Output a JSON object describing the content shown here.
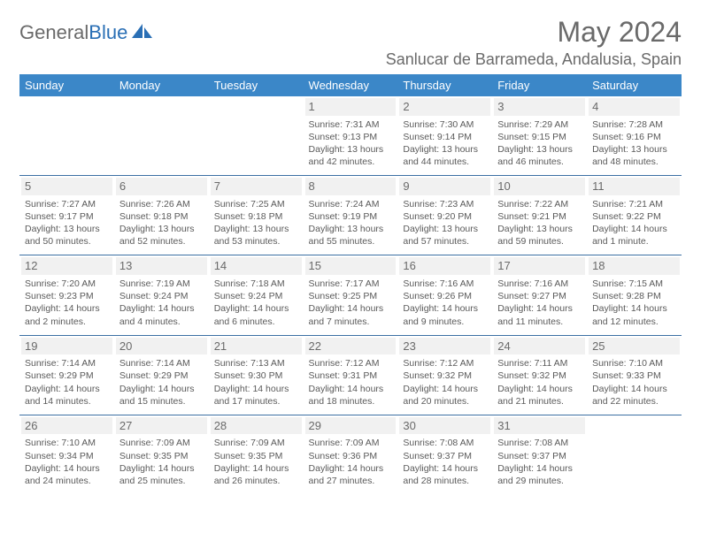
{
  "logo": {
    "word1": "General",
    "word2": "Blue"
  },
  "title": {
    "month_year": "May 2024",
    "location": "Sanlucar de Barrameda, Andalusia, Spain"
  },
  "colors": {
    "header_bg": "#3b87c8",
    "header_text": "#ffffff",
    "cell_border": "#3b6fa3",
    "daynum_bg": "#f1f1f1",
    "body_text": "#5a5a5a",
    "title_text": "#6a6a6a",
    "logo_gray": "#6a6a6a",
    "logo_blue": "#2a6fb5",
    "background": "#ffffff"
  },
  "typography": {
    "month_year_fontsize": 32,
    "location_fontsize": 18,
    "header_fontsize": 13,
    "daynum_fontsize": 13,
    "cell_fontsize": 10.5
  },
  "weekdays": [
    "Sunday",
    "Monday",
    "Tuesday",
    "Wednesday",
    "Thursday",
    "Friday",
    "Saturday"
  ],
  "weeks": [
    [
      null,
      null,
      null,
      {
        "day": "1",
        "sunrise": "Sunrise: 7:31 AM",
        "sunset": "Sunset: 9:13 PM",
        "daylight1": "Daylight: 13 hours",
        "daylight2": "and 42 minutes."
      },
      {
        "day": "2",
        "sunrise": "Sunrise: 7:30 AM",
        "sunset": "Sunset: 9:14 PM",
        "daylight1": "Daylight: 13 hours",
        "daylight2": "and 44 minutes."
      },
      {
        "day": "3",
        "sunrise": "Sunrise: 7:29 AM",
        "sunset": "Sunset: 9:15 PM",
        "daylight1": "Daylight: 13 hours",
        "daylight2": "and 46 minutes."
      },
      {
        "day": "4",
        "sunrise": "Sunrise: 7:28 AM",
        "sunset": "Sunset: 9:16 PM",
        "daylight1": "Daylight: 13 hours",
        "daylight2": "and 48 minutes."
      }
    ],
    [
      {
        "day": "5",
        "sunrise": "Sunrise: 7:27 AM",
        "sunset": "Sunset: 9:17 PM",
        "daylight1": "Daylight: 13 hours",
        "daylight2": "and 50 minutes."
      },
      {
        "day": "6",
        "sunrise": "Sunrise: 7:26 AM",
        "sunset": "Sunset: 9:18 PM",
        "daylight1": "Daylight: 13 hours",
        "daylight2": "and 52 minutes."
      },
      {
        "day": "7",
        "sunrise": "Sunrise: 7:25 AM",
        "sunset": "Sunset: 9:18 PM",
        "daylight1": "Daylight: 13 hours",
        "daylight2": "and 53 minutes."
      },
      {
        "day": "8",
        "sunrise": "Sunrise: 7:24 AM",
        "sunset": "Sunset: 9:19 PM",
        "daylight1": "Daylight: 13 hours",
        "daylight2": "and 55 minutes."
      },
      {
        "day": "9",
        "sunrise": "Sunrise: 7:23 AM",
        "sunset": "Sunset: 9:20 PM",
        "daylight1": "Daylight: 13 hours",
        "daylight2": "and 57 minutes."
      },
      {
        "day": "10",
        "sunrise": "Sunrise: 7:22 AM",
        "sunset": "Sunset: 9:21 PM",
        "daylight1": "Daylight: 13 hours",
        "daylight2": "and 59 minutes."
      },
      {
        "day": "11",
        "sunrise": "Sunrise: 7:21 AM",
        "sunset": "Sunset: 9:22 PM",
        "daylight1": "Daylight: 14 hours",
        "daylight2": "and 1 minute."
      }
    ],
    [
      {
        "day": "12",
        "sunrise": "Sunrise: 7:20 AM",
        "sunset": "Sunset: 9:23 PM",
        "daylight1": "Daylight: 14 hours",
        "daylight2": "and 2 minutes."
      },
      {
        "day": "13",
        "sunrise": "Sunrise: 7:19 AM",
        "sunset": "Sunset: 9:24 PM",
        "daylight1": "Daylight: 14 hours",
        "daylight2": "and 4 minutes."
      },
      {
        "day": "14",
        "sunrise": "Sunrise: 7:18 AM",
        "sunset": "Sunset: 9:24 PM",
        "daylight1": "Daylight: 14 hours",
        "daylight2": "and 6 minutes."
      },
      {
        "day": "15",
        "sunrise": "Sunrise: 7:17 AM",
        "sunset": "Sunset: 9:25 PM",
        "daylight1": "Daylight: 14 hours",
        "daylight2": "and 7 minutes."
      },
      {
        "day": "16",
        "sunrise": "Sunrise: 7:16 AM",
        "sunset": "Sunset: 9:26 PM",
        "daylight1": "Daylight: 14 hours",
        "daylight2": "and 9 minutes."
      },
      {
        "day": "17",
        "sunrise": "Sunrise: 7:16 AM",
        "sunset": "Sunset: 9:27 PM",
        "daylight1": "Daylight: 14 hours",
        "daylight2": "and 11 minutes."
      },
      {
        "day": "18",
        "sunrise": "Sunrise: 7:15 AM",
        "sunset": "Sunset: 9:28 PM",
        "daylight1": "Daylight: 14 hours",
        "daylight2": "and 12 minutes."
      }
    ],
    [
      {
        "day": "19",
        "sunrise": "Sunrise: 7:14 AM",
        "sunset": "Sunset: 9:29 PM",
        "daylight1": "Daylight: 14 hours",
        "daylight2": "and 14 minutes."
      },
      {
        "day": "20",
        "sunrise": "Sunrise: 7:14 AM",
        "sunset": "Sunset: 9:29 PM",
        "daylight1": "Daylight: 14 hours",
        "daylight2": "and 15 minutes."
      },
      {
        "day": "21",
        "sunrise": "Sunrise: 7:13 AM",
        "sunset": "Sunset: 9:30 PM",
        "daylight1": "Daylight: 14 hours",
        "daylight2": "and 17 minutes."
      },
      {
        "day": "22",
        "sunrise": "Sunrise: 7:12 AM",
        "sunset": "Sunset: 9:31 PM",
        "daylight1": "Daylight: 14 hours",
        "daylight2": "and 18 minutes."
      },
      {
        "day": "23",
        "sunrise": "Sunrise: 7:12 AM",
        "sunset": "Sunset: 9:32 PM",
        "daylight1": "Daylight: 14 hours",
        "daylight2": "and 20 minutes."
      },
      {
        "day": "24",
        "sunrise": "Sunrise: 7:11 AM",
        "sunset": "Sunset: 9:32 PM",
        "daylight1": "Daylight: 14 hours",
        "daylight2": "and 21 minutes."
      },
      {
        "day": "25",
        "sunrise": "Sunrise: 7:10 AM",
        "sunset": "Sunset: 9:33 PM",
        "daylight1": "Daylight: 14 hours",
        "daylight2": "and 22 minutes."
      }
    ],
    [
      {
        "day": "26",
        "sunrise": "Sunrise: 7:10 AM",
        "sunset": "Sunset: 9:34 PM",
        "daylight1": "Daylight: 14 hours",
        "daylight2": "and 24 minutes."
      },
      {
        "day": "27",
        "sunrise": "Sunrise: 7:09 AM",
        "sunset": "Sunset: 9:35 PM",
        "daylight1": "Daylight: 14 hours",
        "daylight2": "and 25 minutes."
      },
      {
        "day": "28",
        "sunrise": "Sunrise: 7:09 AM",
        "sunset": "Sunset: 9:35 PM",
        "daylight1": "Daylight: 14 hours",
        "daylight2": "and 26 minutes."
      },
      {
        "day": "29",
        "sunrise": "Sunrise: 7:09 AM",
        "sunset": "Sunset: 9:36 PM",
        "daylight1": "Daylight: 14 hours",
        "daylight2": "and 27 minutes."
      },
      {
        "day": "30",
        "sunrise": "Sunrise: 7:08 AM",
        "sunset": "Sunset: 9:37 PM",
        "daylight1": "Daylight: 14 hours",
        "daylight2": "and 28 minutes."
      },
      {
        "day": "31",
        "sunrise": "Sunrise: 7:08 AM",
        "sunset": "Sunset: 9:37 PM",
        "daylight1": "Daylight: 14 hours",
        "daylight2": "and 29 minutes."
      },
      null
    ]
  ]
}
